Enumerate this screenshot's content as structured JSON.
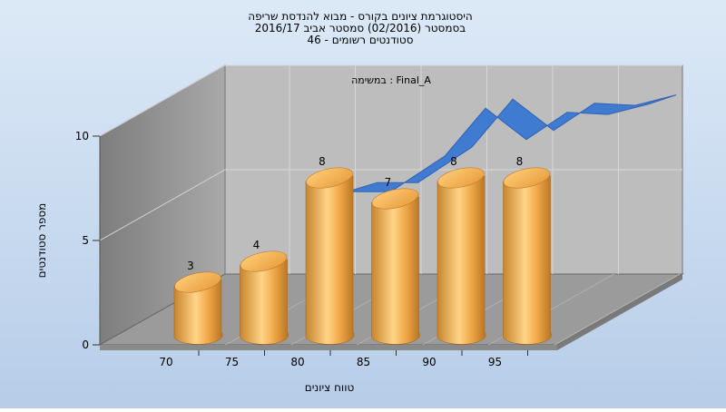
{
  "chart_data": {
    "type": "bar",
    "title_lines": [
      "היסטוגרמת ציונים בקורס - מבוא להנדסת שריפה",
      "בסמסטר  (02/2016)  סמסטר אביב 2016/17",
      "סטודנטים רשומים - 46"
    ],
    "subtitle": "במשימה : Final_A",
    "xlabel": "טווח ציונים",
    "ylabel": "מספר סטודנטים",
    "x_ticks": [
      "70",
      "75",
      "80",
      "85",
      "90",
      "95"
    ],
    "y_ticks": [
      "0",
      "5",
      "10"
    ],
    "ylim": [
      0,
      10
    ],
    "categories": [
      "70",
      "75",
      "80",
      "85",
      "90",
      "95"
    ],
    "series": [
      {
        "values": [
          3,
          4,
          8,
          7,
          8,
          8
        ]
      }
    ],
    "ribbon": {
      "x": [
        75,
        78,
        81,
        85,
        88,
        91,
        94,
        97,
        100
      ],
      "y": [
        5.0,
        5.6,
        5.6,
        7.3,
        9.6,
        8.1,
        9.4,
        9.3,
        9.8
      ]
    },
    "data_labels": [
      "3",
      "4",
      "8",
      "7",
      "8",
      "8"
    ],
    "grid": true,
    "legend": "none",
    "colors": {
      "bar": "#f0a848",
      "ribbon": "#3a78d4",
      "floor": "#9a9a9a",
      "wall": "#bcbcbc"
    }
  }
}
